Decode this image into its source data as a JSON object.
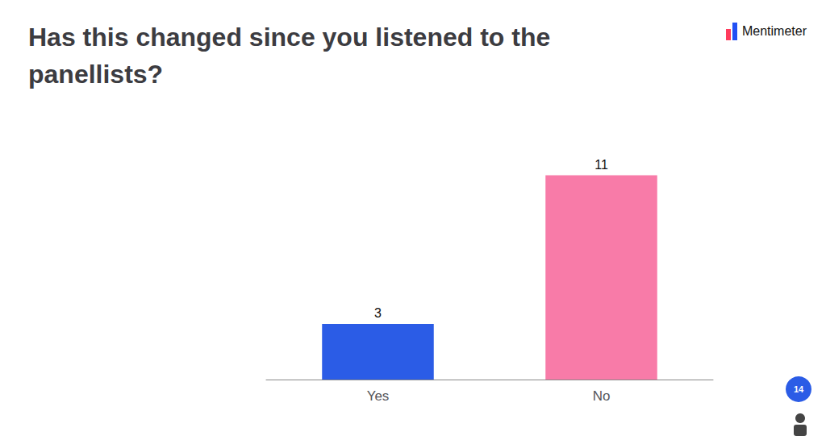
{
  "chart_data": {
    "type": "bar",
    "title": "Has this changed since you listened to the\npanellists?",
    "categories": [
      "Yes",
      "No"
    ],
    "values": [
      3,
      11
    ],
    "colors": [
      "#2B5CE6",
      "#F87BA8"
    ],
    "ylim": [
      0,
      13.5
    ],
    "grid": false,
    "data_labels": true,
    "tick_labels": "x",
    "annotations": [
      "Mentimeter",
      "14"
    ]
  }
}
